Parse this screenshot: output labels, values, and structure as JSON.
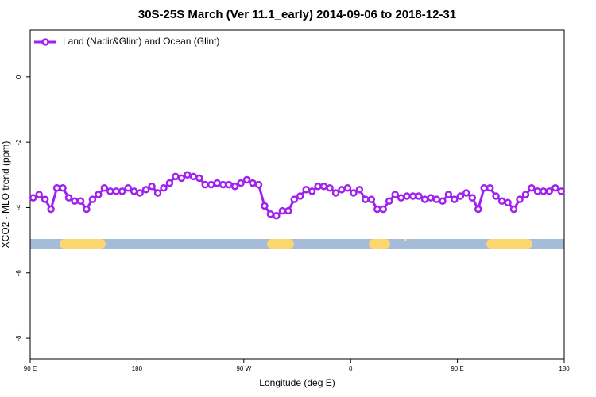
{
  "chart_data": {
    "type": "line",
    "title": "30S-25S March (Ver 11.1_early)   2014-09-06 to 2018-12-31",
    "x_label": "Longitude (deg E)",
    "y_label": "XCO2 - MLO trend (ppm)",
    "xlim": [
      90,
      540
    ],
    "xticks": [
      {
        "value": 90,
        "label": "90 E"
      },
      180,
      {
        "value": 270,
        "label": "90 W"
      },
      {
        "value": 360,
        "label": "0"
      },
      {
        "value": 450,
        "label": "90 E"
      },
      {
        "value": 540,
        "label": "180"
      }
    ],
    "ylim": [
      -8.63,
      1.43
    ],
    "yticks": [
      0,
      -2,
      -4,
      -6,
      -8
    ],
    "legend": "upper left",
    "x": [
      92.5,
      97.5,
      102.5,
      107.5,
      112.5,
      117.5,
      122.5,
      127.5,
      132.5,
      137.5,
      142.5,
      147.5,
      152.5,
      157.5,
      162.5,
      167.5,
      172.5,
      177.5,
      182.5,
      187.5,
      192.5,
      197.5,
      202.5,
      207.5,
      212.5,
      217.5,
      222.5,
      227.5,
      232.5,
      237.5,
      242.5,
      247.5,
      252.5,
      257.5,
      262.5,
      267.5,
      272.5,
      277.5,
      282.5,
      287.5,
      292.5,
      297.5,
      302.5,
      307.5,
      312.5,
      317.5,
      322.5,
      327.5,
      332.5,
      337.5,
      342.5,
      347.5,
      352.5,
      357.5,
      362.5,
      367.5,
      372.5,
      377.5,
      382.5,
      387.5,
      392.5,
      397.5,
      402.5,
      407.5,
      412.5,
      417.5,
      422.5,
      427.5,
      432.5,
      437.5,
      442.5,
      447.5,
      452.5,
      457.5,
      462.5,
      467.5,
      472.5,
      477.5,
      482.5,
      487.5,
      492.5,
      497.5,
      502.5,
      507.5,
      512.5,
      517.5,
      522.5,
      527.5,
      532.5,
      537.5
    ],
    "series": [
      {
        "name": "Land (Nadir&Glint) and Ocean (Glint)",
        "color": "#a020f0",
        "values": [
          -3.7,
          -3.6,
          -3.75,
          -4.05,
          -3.4,
          -3.4,
          -3.7,
          -3.8,
          -3.8,
          -4.05,
          -3.75,
          -3.6,
          -3.4,
          -3.5,
          -3.5,
          -3.5,
          -3.4,
          -3.5,
          -3.55,
          -3.45,
          -3.35,
          -3.55,
          -3.4,
          -3.25,
          -3.05,
          -3.1,
          -3.0,
          -3.05,
          -3.1,
          -3.3,
          -3.3,
          -3.25,
          -3.3,
          -3.3,
          -3.35,
          -3.25,
          -3.15,
          -3.25,
          -3.3,
          -3.95,
          -4.2,
          -4.25,
          -4.1,
          -4.1,
          -3.75,
          -3.65,
          -3.45,
          -3.5,
          -3.35,
          -3.35,
          -3.4,
          -3.55,
          -3.45,
          -3.4,
          -3.55,
          -3.45,
          -3.75,
          -3.75,
          -4.05,
          -4.05,
          -3.8,
          -3.6,
          -3.7,
          -3.65,
          -3.65,
          -3.65,
          -3.75,
          -3.7,
          -3.75,
          -3.8,
          -3.6,
          -3.75,
          -3.65,
          -3.55,
          -3.7,
          -4.05,
          -3.4,
          -3.4,
          -3.65,
          -3.8,
          -3.85,
          -4.05,
          -3.75,
          -3.6,
          -3.4,
          -3.5,
          -3.5,
          -3.5,
          -3.4,
          -3.5
        ]
      }
    ]
  }
}
